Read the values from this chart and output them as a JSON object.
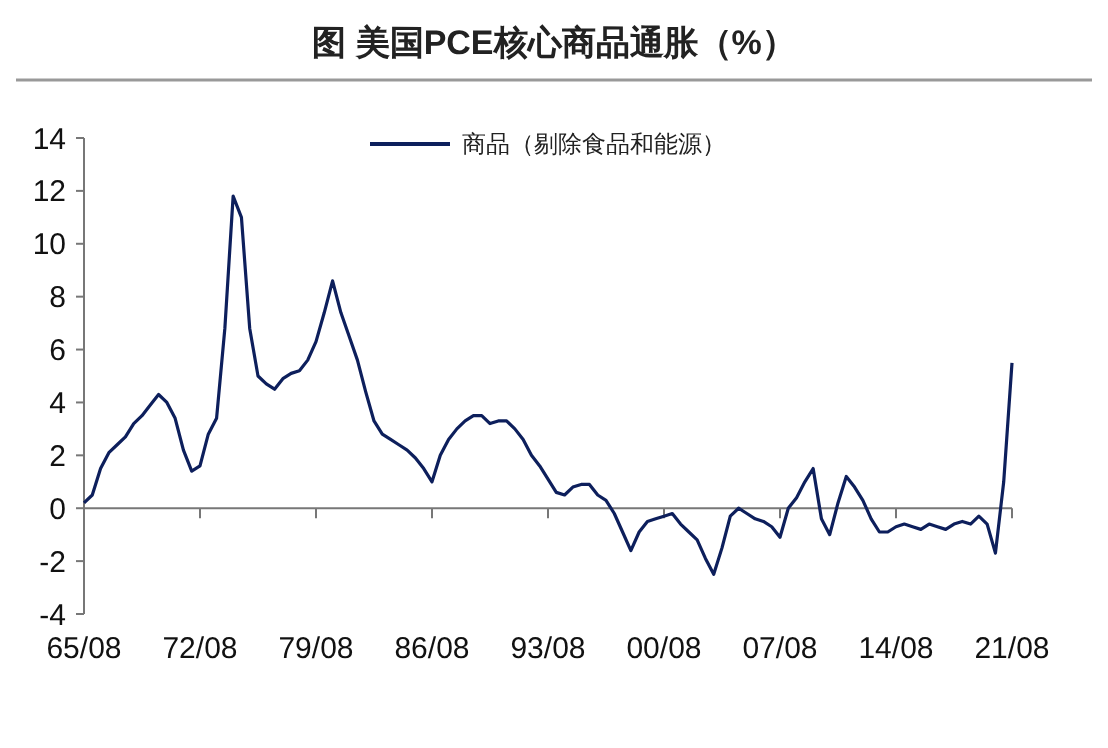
{
  "chart_data": {
    "type": "line",
    "title": "图  美国PCE核心商品通胀（%）",
    "legend": "top",
    "categories": [
      "65/08",
      null,
      null,
      null,
      null,
      null,
      null,
      null,
      null,
      null,
      null,
      null,
      null,
      null,
      "72/08",
      null,
      null,
      null,
      null,
      null,
      null,
      null,
      null,
      null,
      null,
      null,
      null,
      null,
      "79/08",
      null,
      null,
      null,
      null,
      null,
      null,
      null,
      null,
      null,
      null,
      null,
      null,
      null,
      "86/08",
      null,
      null,
      null,
      null,
      null,
      null,
      null,
      null,
      null,
      null,
      null,
      null,
      null,
      "93/08",
      null,
      null,
      null,
      null,
      null,
      null,
      null,
      null,
      null,
      null,
      null,
      null,
      null,
      "00/08",
      null,
      null,
      null,
      null,
      null,
      null,
      null,
      null,
      null,
      null,
      null,
      null,
      null,
      "07/08",
      null,
      null,
      null,
      null,
      null,
      null,
      null,
      null,
      null,
      null,
      null,
      null,
      null,
      "14/08",
      null,
      null,
      null,
      null,
      null,
      null,
      null,
      null,
      null,
      null,
      null,
      null,
      null,
      "21/08"
    ],
    "series": [
      {
        "name": "商品（剔除食品和能源）",
        "color": "#0d1f5c",
        "values": [
          0.2,
          0.5,
          1.5,
          2.1,
          2.4,
          2.7,
          3.2,
          3.5,
          3.9,
          4.3,
          4.0,
          3.4,
          2.2,
          1.4,
          1.6,
          2.8,
          3.4,
          6.8,
          11.8,
          11.0,
          6.8,
          5.0,
          4.7,
          4.5,
          4.9,
          5.1,
          5.2,
          5.6,
          6.3,
          7.4,
          8.6,
          7.4,
          6.5,
          5.6,
          4.4,
          3.3,
          2.8,
          2.6,
          2.4,
          2.2,
          1.9,
          1.5,
          1.0,
          2.0,
          2.6,
          3.0,
          3.3,
          3.5,
          3.5,
          3.2,
          3.3,
          3.3,
          3.0,
          2.6,
          2.0,
          1.6,
          1.1,
          0.6,
          0.5,
          0.8,
          0.9,
          0.9,
          0.5,
          0.3,
          -0.2,
          -0.9,
          -1.6,
          -0.9,
          -0.5,
          -0.4,
          -0.3,
          -0.2,
          -0.6,
          -0.9,
          -1.2,
          -1.9,
          -2.5,
          -1.5,
          -0.3,
          0.0,
          -0.2,
          -0.4,
          -0.5,
          -0.7,
          -1.1,
          0.0,
          0.4,
          1.0,
          1.5,
          -0.4,
          -1.0,
          0.2,
          1.2,
          0.8,
          0.3,
          -0.4,
          -0.9,
          -0.9,
          -0.7,
          -0.6,
          -0.7,
          -0.8,
          -0.6,
          -0.7,
          -0.8,
          -0.6,
          -0.5,
          -0.6,
          -0.3,
          -0.6,
          -1.7,
          1.0,
          5.5
        ]
      }
    ],
    "ylim": [
      -4,
      14
    ],
    "yticks": [
      -4,
      -2,
      0,
      2,
      4,
      6,
      8,
      10,
      12,
      14
    ]
  }
}
